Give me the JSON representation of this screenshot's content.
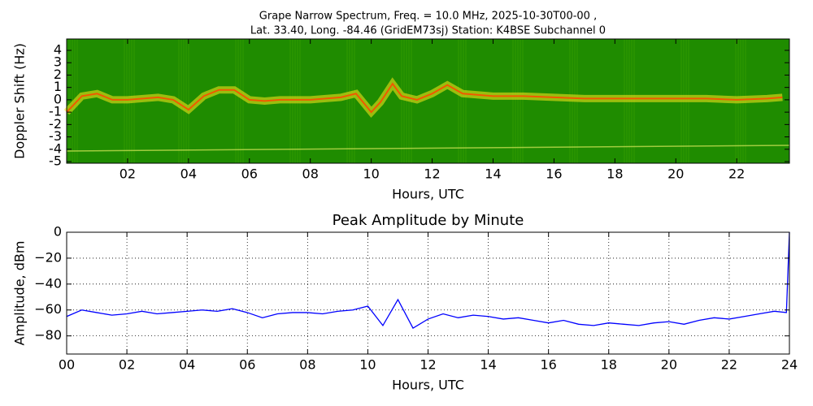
{
  "chart_data": [
    {
      "type": "spectrogram",
      "title": [
        "Grape Narrow Spectrum, Freq. = 10.0 MHz, 2025-10-30T00-00 ,",
        "Lat.  33.40, Long. -84.46 (GridEM73sj) Station: K4BSE Subchannel 0"
      ],
      "xlabel": "Hours, UTC",
      "ylabel": "Doppler Shift (Hz)",
      "background": "#1f8c00",
      "color": "#ffe81a",
      "x": [
        0,
        0.5,
        1,
        1.5,
        2,
        3,
        3.5,
        4,
        4.5,
        5,
        5.5,
        6,
        6.5,
        7,
        8,
        9,
        9.5,
        10,
        10.3,
        10.7,
        11,
        11.5,
        12,
        12.5,
        13,
        14,
        15,
        16,
        17,
        18,
        19,
        20,
        21,
        22,
        23,
        23.5
      ],
      "values": [
        -1,
        0.3,
        0.5,
        0,
        0,
        0.2,
        0,
        -0.8,
        0.3,
        0.8,
        0.8,
        0,
        -0.1,
        0,
        0,
        0.2,
        0.5,
        -1,
        -0.2,
        1.3,
        0.3,
        0,
        0.5,
        1.2,
        0.5,
        0.3,
        0.3,
        0.2,
        0.1,
        0.1,
        0.1,
        0.1,
        0.1,
        0,
        0.1,
        0.2
      ],
      "xlim": [
        0,
        23.73
      ],
      "ylim": [
        -5.13,
        4.92
      ],
      "xticks": [
        {
          "value": 2,
          "label": "02"
        },
        {
          "value": 4,
          "label": "04"
        },
        {
          "value": 6,
          "label": "06"
        },
        {
          "value": 8,
          "label": "08"
        },
        10,
        12,
        14,
        16,
        18,
        20,
        22
      ],
      "yticks": [
        -5,
        -4,
        -3,
        -2,
        -1,
        0,
        1,
        2,
        3,
        4
      ],
      "grid": false
    },
    {
      "type": "line",
      "title": "Peak Amplitude by Minute",
      "xlabel": "Hours, UTC",
      "ylabel": "Amplitude, dBm",
      "color": "#0000ff",
      "x": [
        0,
        0.5,
        1,
        1.5,
        2,
        2.5,
        3,
        3.5,
        4,
        4.5,
        5,
        5.5,
        6,
        6.5,
        7,
        7.5,
        8,
        8.5,
        9,
        9.5,
        10,
        10.5,
        11,
        11.5,
        12,
        12.5,
        13,
        13.5,
        14,
        14.5,
        15,
        15.5,
        16,
        16.5,
        17,
        17.5,
        18,
        18.5,
        19,
        19.5,
        20,
        20.5,
        21,
        21.5,
        22,
        22.5,
        23,
        23.5,
        23.9,
        24
      ],
      "values": [
        -65,
        -60,
        -62,
        -64,
        -63,
        -61,
        -63,
        -62,
        -61,
        -60,
        -61,
        -59,
        -62,
        -66,
        -63,
        -62,
        -62,
        -63,
        -61,
        -60,
        -57,
        -72,
        -52,
        -74,
        -67,
        -63,
        -66,
        -64,
        -65,
        -67,
        -66,
        -68,
        -70,
        -68,
        -71,
        -72,
        -70,
        -71,
        -72,
        -70,
        -69,
        -71,
        -68,
        -66,
        -67,
        -65,
        -63,
        -61,
        -62,
        0
      ],
      "xlim": [
        0,
        24
      ],
      "ylim": [
        -94,
        0
      ],
      "xticks": [
        {
          "value": 0,
          "label": "00"
        },
        {
          "value": 2,
          "label": "02"
        },
        {
          "value": 4,
          "label": "04"
        },
        {
          "value": 6,
          "label": "06"
        },
        {
          "value": 8,
          "label": "08"
        },
        10,
        12,
        14,
        16,
        18,
        20,
        22,
        24
      ],
      "yticks": [
        0,
        {
          "value": -20,
          "label": "−20"
        },
        {
          "value": -40,
          "label": "−40"
        },
        {
          "value": -60,
          "label": "−60"
        },
        {
          "value": -80,
          "label": "−80"
        }
      ],
      "grid": true
    }
  ]
}
